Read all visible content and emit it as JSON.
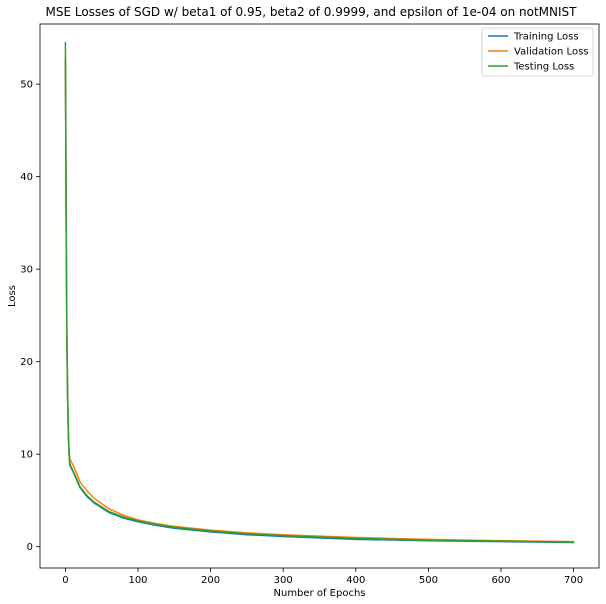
{
  "chart_data": {
    "type": "line",
    "title": "MSE Losses of SGD w/ beta1 of 0.95, beta2 of 0.9999, and epsilon of 1e-04 on notMNIST",
    "xlabel": "Number of Epochs",
    "ylabel": "Loss",
    "xlim": [
      -35,
      735
    ],
    "ylim": [
      -2.3,
      56.5
    ],
    "xticks": [
      0,
      100,
      200,
      300,
      400,
      500,
      600,
      700
    ],
    "yticks": [
      0,
      10,
      20,
      30,
      40,
      50
    ],
    "grid": false,
    "legend_position": "top-right",
    "series": [
      {
        "name": "Training Loss",
        "color": "#1f77b4",
        "x": [
          0,
          1,
          2,
          3,
          4,
          5,
          6,
          8,
          10,
          15,
          20,
          30,
          40,
          60,
          80,
          100,
          125,
          150,
          200,
          250,
          300,
          400,
          500,
          600,
          700
        ],
        "y": [
          52.5,
          35.0,
          22.0,
          16.0,
          12.0,
          10.0,
          8.8,
          8.5,
          8.2,
          7.3,
          6.4,
          5.4,
          4.7,
          3.7,
          3.1,
          2.7,
          2.3,
          2.0,
          1.6,
          1.3,
          1.1,
          0.8,
          0.65,
          0.55,
          0.45
        ]
      },
      {
        "name": "Validation Loss",
        "color": "#ff7f0e",
        "x": [
          0,
          1,
          2,
          3,
          4,
          5,
          6,
          8,
          10,
          15,
          20,
          30,
          40,
          60,
          80,
          100,
          125,
          150,
          200,
          250,
          300,
          400,
          500,
          600,
          700
        ],
        "y": [
          53.0,
          36.0,
          23.0,
          16.5,
          12.5,
          10.5,
          9.5,
          9.2,
          8.9,
          8.0,
          7.0,
          6.0,
          5.2,
          4.1,
          3.4,
          2.9,
          2.5,
          2.2,
          1.8,
          1.5,
          1.3,
          1.0,
          0.8,
          0.65,
          0.55
        ]
      },
      {
        "name": "Testing Loss",
        "color": "#2ca02c",
        "x": [
          0,
          1,
          2,
          3,
          4,
          5,
          6,
          8,
          10,
          15,
          20,
          30,
          40,
          60,
          80,
          100,
          125,
          150,
          200,
          250,
          300,
          400,
          500,
          600,
          700
        ],
        "y": [
          54.5,
          36.5,
          23.5,
          17.0,
          12.8,
          10.2,
          9.0,
          8.6,
          8.3,
          7.4,
          6.5,
          5.5,
          4.8,
          3.8,
          3.2,
          2.8,
          2.4,
          2.1,
          1.7,
          1.4,
          1.2,
          0.9,
          0.7,
          0.6,
          0.5
        ]
      }
    ]
  }
}
